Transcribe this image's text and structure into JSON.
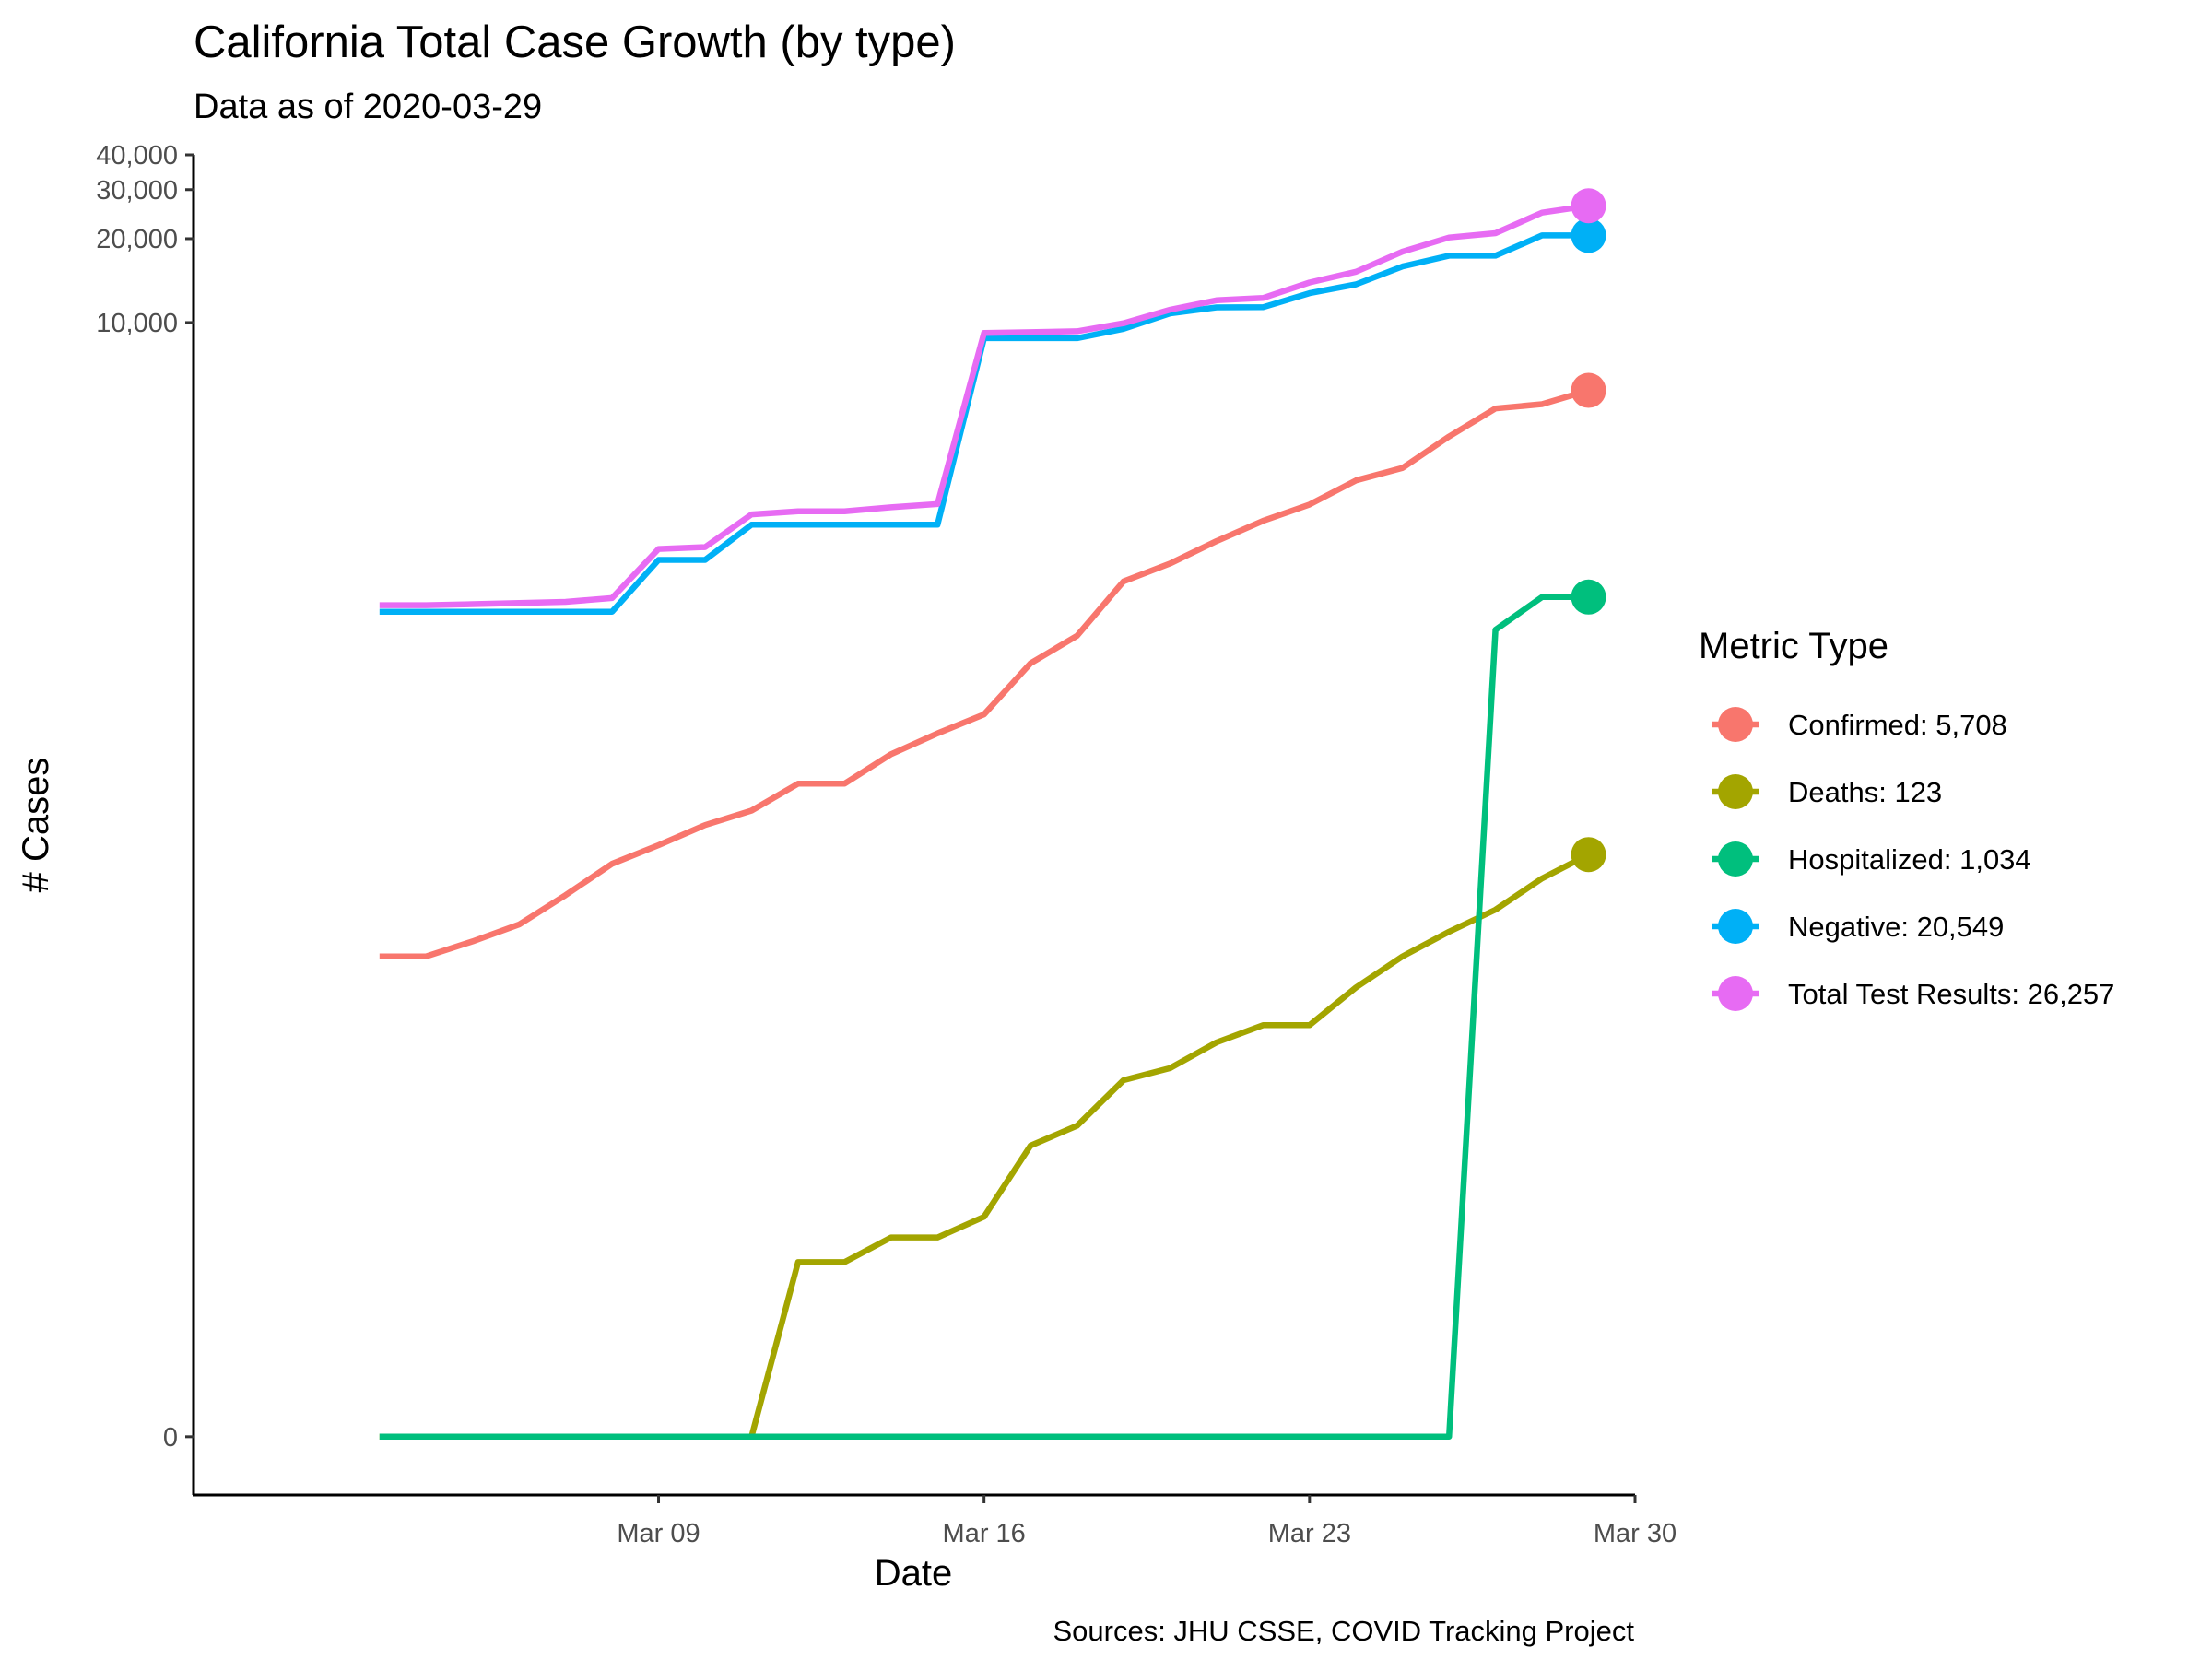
{
  "chart_data": {
    "type": "line",
    "title": "California Total Case Growth (by type)",
    "subtitle": "Data as of 2020-03-29",
    "xlabel": "Date",
    "ylabel": "# Cases",
    "caption": "Sources: JHU CSSE, COVID Tracking Project",
    "y_scale": "pseudo-log",
    "xlim": [
      "2020-02-28",
      "2020-03-30"
    ],
    "ylim": [
      -1,
      40000
    ],
    "grid": false,
    "x_ticks": [
      {
        "date": "2020-03-09",
        "label": "Mar 09"
      },
      {
        "date": "2020-03-16",
        "label": "Mar 16"
      },
      {
        "date": "2020-03-23",
        "label": "Mar 23"
      },
      {
        "date": "2020-03-30",
        "label": "Mar 30"
      }
    ],
    "y_ticks": [
      {
        "value": 0,
        "label": "0"
      },
      {
        "value": 10000,
        "label": "10,000"
      },
      {
        "value": 20000,
        "label": "20,000"
      },
      {
        "value": 30000,
        "label": "30,000"
      },
      {
        "value": 40000,
        "label": "40,000"
      }
    ],
    "legend": {
      "title": "Metric Type",
      "position": "right"
    },
    "x": [
      "2020-03-03",
      "2020-03-04",
      "2020-03-05",
      "2020-03-06",
      "2020-03-07",
      "2020-03-08",
      "2020-03-09",
      "2020-03-10",
      "2020-03-11",
      "2020-03-12",
      "2020-03-13",
      "2020-03-14",
      "2020-03-15",
      "2020-03-16",
      "2020-03-17",
      "2020-03-18",
      "2020-03-19",
      "2020-03-20",
      "2020-03-21",
      "2020-03-22",
      "2020-03-23",
      "2020-03-24",
      "2020-03-25",
      "2020-03-26",
      "2020-03-27",
      "2020-03-28",
      "2020-03-29"
    ],
    "series": [
      {
        "name": "Confirmed: 5,708",
        "color": "#F8766D",
        "values": [
          53,
          53,
          60,
          69,
          88,
          114,
          133,
          157,
          177,
          221,
          221,
          282,
          335,
          392,
          598,
          751,
          1177,
          1364,
          1642,
          1942,
          2221,
          2712,
          3006,
          3899,
          4914,
          5095,
          5708
        ]
      },
      {
        "name": "Deaths: 123",
        "color": "#A3A500",
        "values": [
          0,
          0,
          0,
          0,
          0,
          0,
          0,
          0,
          0,
          4,
          4,
          5,
          5,
          6,
          11,
          13,
          19,
          21,
          26,
          30,
          30,
          41,
          53,
          65,
          78,
          101,
          123
        ]
      },
      {
        "name": "Hospitalized: 1,034",
        "color": "#00BF7D",
        "values": [
          0,
          0,
          0,
          0,
          0,
          0,
          0,
          0,
          0,
          0,
          0,
          0,
          0,
          0,
          0,
          0,
          0,
          0,
          0,
          0,
          0,
          0,
          0,
          0,
          789,
          1034,
          1034
        ]
      },
      {
        "name": "Negative: 20,549",
        "color": "#00B0F6",
        "values": [
          916,
          916,
          916,
          916,
          916,
          916,
          1406,
          1406,
          1880,
          1880,
          1880,
          1880,
          1880,
          8787,
          8787,
          8787,
          9490,
          10784,
          11337,
          11354,
          12745,
          13713,
          15900,
          17380,
          17380,
          20549,
          20549
        ]
      },
      {
        "name": "Total Test Results: 26,257",
        "color": "#E76BF3",
        "values": [
          967,
          967,
          975,
          984,
          994,
          1025,
          1539,
          1563,
          2048,
          2100,
          2100,
          2172,
          2230,
          9179,
          9235,
          9306,
          9942,
          11121,
          12021,
          12256,
          13928,
          15219,
          17972,
          20190,
          20936,
          24811,
          26257
        ]
      }
    ]
  }
}
